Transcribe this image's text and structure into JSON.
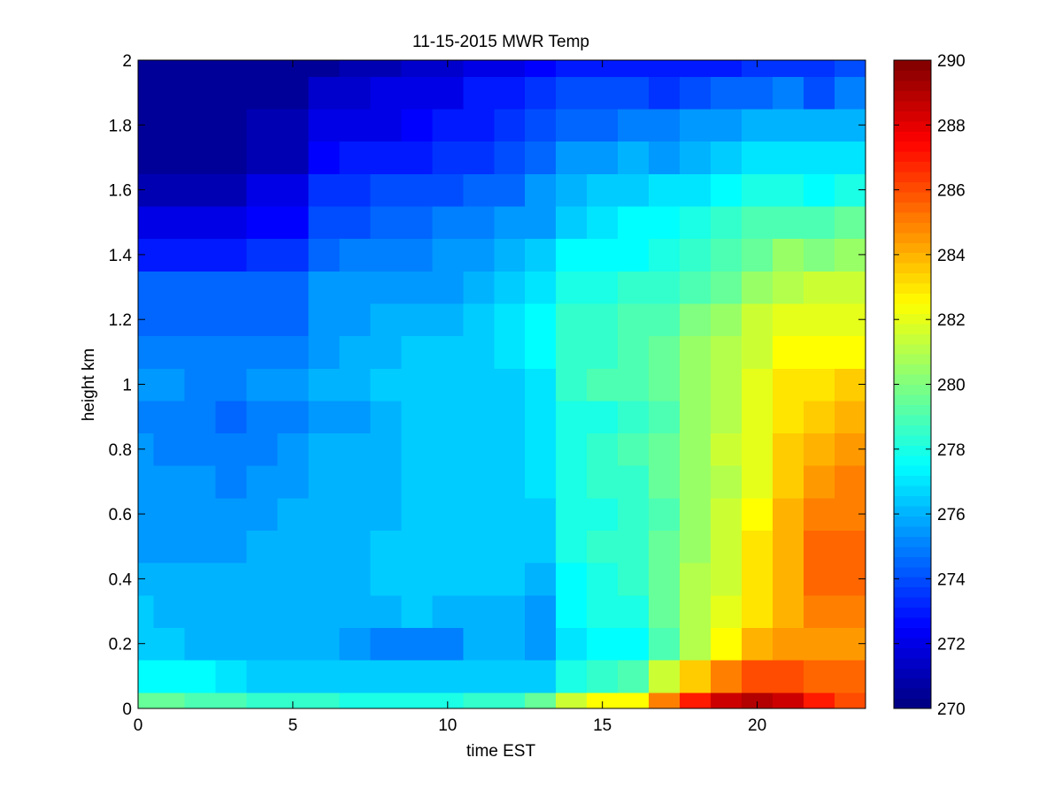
{
  "chart_data": {
    "type": "heatmap",
    "title": "11-15-2015 MWR Temp",
    "xlabel": "time EST",
    "ylabel": "height km",
    "xlim": [
      0,
      23.5
    ],
    "ylim": [
      0,
      2
    ],
    "xticks": [
      0,
      5,
      10,
      15,
      20
    ],
    "yticks": [
      0,
      0.2,
      0.4,
      0.6,
      0.8,
      1,
      1.2,
      1.4,
      1.6,
      1.8,
      2
    ],
    "colorbar": {
      "colormap": "jet",
      "clim": [
        270,
        290
      ],
      "ticks": [
        270,
        272,
        274,
        276,
        278,
        280,
        282,
        284,
        286,
        288,
        290
      ]
    },
    "x": [
      0,
      1,
      2,
      3,
      4,
      5,
      6,
      7,
      8,
      9,
      10,
      11,
      12,
      13,
      14,
      15,
      16,
      17,
      18,
      19,
      20,
      21,
      22,
      23
    ],
    "y_edges": [
      0,
      0.05,
      0.15,
      0.25,
      0.35,
      0.45,
      0.55,
      0.65,
      0.75,
      0.85,
      0.95,
      1.05,
      1.15,
      1.25,
      1.35,
      1.45,
      1.55,
      1.65,
      1.75,
      1.85,
      1.95,
      2.0
    ],
    "values_by_height": [
      [
        279.5,
        279.5,
        279.0,
        279.0,
        278.5,
        278.5,
        278.5,
        278.0,
        278.0,
        278.0,
        278.0,
        278.5,
        278.5,
        279.5,
        281.5,
        282.5,
        282.5,
        285.0,
        287.0,
        288.5,
        289.0,
        288.5,
        287.0,
        286.0
      ],
      [
        277.5,
        277.5,
        277.5,
        277.0,
        276.5,
        276.5,
        276.5,
        276.5,
        276.5,
        276.5,
        276.5,
        276.5,
        276.5,
        276.5,
        278.0,
        278.5,
        279.0,
        281.5,
        283.5,
        285.0,
        286.0,
        286.0,
        285.5,
        285.5
      ],
      [
        276.5,
        276.5,
        276.0,
        276.0,
        276.0,
        276.0,
        276.0,
        275.5,
        275.0,
        275.0,
        275.0,
        276.0,
        276.0,
        275.5,
        277.0,
        277.5,
        277.5,
        279.0,
        281.0,
        282.5,
        284.0,
        284.5,
        284.5,
        284.5
      ],
      [
        276.5,
        276.0,
        276.0,
        276.0,
        276.0,
        276.0,
        276.0,
        276.0,
        276.0,
        276.5,
        276.0,
        276.0,
        276.0,
        275.5,
        277.5,
        278.0,
        278.0,
        279.5,
        281.0,
        282.0,
        283.0,
        284.0,
        285.0,
        285.0
      ],
      [
        276.0,
        276.0,
        276.0,
        276.0,
        276.0,
        276.0,
        276.0,
        276.0,
        276.5,
        276.5,
        276.5,
        276.5,
        276.5,
        276.0,
        277.5,
        278.0,
        278.5,
        279.5,
        281.0,
        281.5,
        283.0,
        284.0,
        285.5,
        285.5
      ],
      [
        275.5,
        275.5,
        275.5,
        275.5,
        276.0,
        276.0,
        276.0,
        276.0,
        276.5,
        276.5,
        276.5,
        276.5,
        276.5,
        276.5,
        278.0,
        278.5,
        278.5,
        279.5,
        280.5,
        281.5,
        283.0,
        284.0,
        285.5,
        285.5
      ],
      [
        275.5,
        275.5,
        275.5,
        275.5,
        275.5,
        276.0,
        276.0,
        276.0,
        276.0,
        276.5,
        276.5,
        276.5,
        276.5,
        276.5,
        278.0,
        278.0,
        278.5,
        279.0,
        280.5,
        281.5,
        282.5,
        284.0,
        285.0,
        285.0
      ],
      [
        275.5,
        275.5,
        275.5,
        275.0,
        275.5,
        275.5,
        276.0,
        276.0,
        276.0,
        276.5,
        276.5,
        276.5,
        276.5,
        277.0,
        278.0,
        278.5,
        278.5,
        279.5,
        280.5,
        281.0,
        282.0,
        283.5,
        284.5,
        285.0
      ],
      [
        275.5,
        275.0,
        275.0,
        275.0,
        275.0,
        275.5,
        276.0,
        276.0,
        276.0,
        276.5,
        276.5,
        276.5,
        276.5,
        277.0,
        278.0,
        278.5,
        279.0,
        279.5,
        280.5,
        281.5,
        282.0,
        283.5,
        284.0,
        284.5
      ],
      [
        275.0,
        275.0,
        275.0,
        274.5,
        275.0,
        275.0,
        275.5,
        275.5,
        276.0,
        276.5,
        276.5,
        276.5,
        276.5,
        277.0,
        278.0,
        278.0,
        278.5,
        279.0,
        280.5,
        281.0,
        282.0,
        283.0,
        283.5,
        284.0
      ],
      [
        275.5,
        275.5,
        275.0,
        275.0,
        275.5,
        275.5,
        276.0,
        276.0,
        276.5,
        276.5,
        276.5,
        276.5,
        276.5,
        277.0,
        278.5,
        279.0,
        279.0,
        279.5,
        280.5,
        281.0,
        282.0,
        283.0,
        283.0,
        283.5
      ],
      [
        275.0,
        275.0,
        275.0,
        275.0,
        275.0,
        275.0,
        275.5,
        276.0,
        276.0,
        276.5,
        276.5,
        276.5,
        277.0,
        277.5,
        278.5,
        278.5,
        279.0,
        279.5,
        280.5,
        281.0,
        281.5,
        282.5,
        282.5,
        282.5
      ],
      [
        274.5,
        274.5,
        274.5,
        274.5,
        274.5,
        274.5,
        275.5,
        275.5,
        276.0,
        276.0,
        276.0,
        276.5,
        277.0,
        277.5,
        278.5,
        278.5,
        279.0,
        279.0,
        280.0,
        280.5,
        281.5,
        282.0,
        282.0,
        282.0
      ],
      [
        274.5,
        274.5,
        274.5,
        274.5,
        274.5,
        274.5,
        275.5,
        275.5,
        275.5,
        275.5,
        275.5,
        276.0,
        276.5,
        277.0,
        278.0,
        278.0,
        278.5,
        278.5,
        279.0,
        279.5,
        280.5,
        281.0,
        281.5,
        281.5
      ],
      [
        273.0,
        273.0,
        273.0,
        273.0,
        273.5,
        273.5,
        274.5,
        275.0,
        275.0,
        275.0,
        275.5,
        275.5,
        276.0,
        276.5,
        277.5,
        277.5,
        277.5,
        278.0,
        278.5,
        279.0,
        279.5,
        280.5,
        280.0,
        280.5
      ],
      [
        272.0,
        272.0,
        272.0,
        272.0,
        272.5,
        272.5,
        274.0,
        274.0,
        274.5,
        274.5,
        275.0,
        275.0,
        275.5,
        275.5,
        276.5,
        277.0,
        277.5,
        277.5,
        278.0,
        278.5,
        279.0,
        279.0,
        279.0,
        279.5
      ],
      [
        271.0,
        271.0,
        271.0,
        271.0,
        272.0,
        272.0,
        273.5,
        273.5,
        274.0,
        274.0,
        274.0,
        274.5,
        274.5,
        275.5,
        276.0,
        276.5,
        276.5,
        277.0,
        277.0,
        277.5,
        278.0,
        278.0,
        277.5,
        278.0
      ],
      [
        270.5,
        270.5,
        270.5,
        270.5,
        271.0,
        271.0,
        272.5,
        273.0,
        273.0,
        273.0,
        273.5,
        273.5,
        274.0,
        274.5,
        275.5,
        275.5,
        276.0,
        275.5,
        276.0,
        276.5,
        277.0,
        277.0,
        277.0,
        277.0
      ],
      [
        270.5,
        270.5,
        270.5,
        270.5,
        271.0,
        271.0,
        272.0,
        272.0,
        272.0,
        272.5,
        273.0,
        273.0,
        273.5,
        274.0,
        274.5,
        274.5,
        275.0,
        275.0,
        275.5,
        275.5,
        276.0,
        276.0,
        276.0,
        276.0
      ],
      [
        270.5,
        270.5,
        270.5,
        270.5,
        270.5,
        270.5,
        271.5,
        271.5,
        272.0,
        272.0,
        272.0,
        273.0,
        273.0,
        273.5,
        274.0,
        274.0,
        274.0,
        273.5,
        274.0,
        274.5,
        274.5,
        275.0,
        274.0,
        275.0
      ],
      [
        270.5,
        270.5,
        270.5,
        270.5,
        270.5,
        270.5,
        270.5,
        271.0,
        271.0,
        271.5,
        271.5,
        272.0,
        272.0,
        272.5,
        273.0,
        273.0,
        273.0,
        273.0,
        273.0,
        273.0,
        273.5,
        273.5,
        273.5,
        274.0
      ]
    ]
  }
}
